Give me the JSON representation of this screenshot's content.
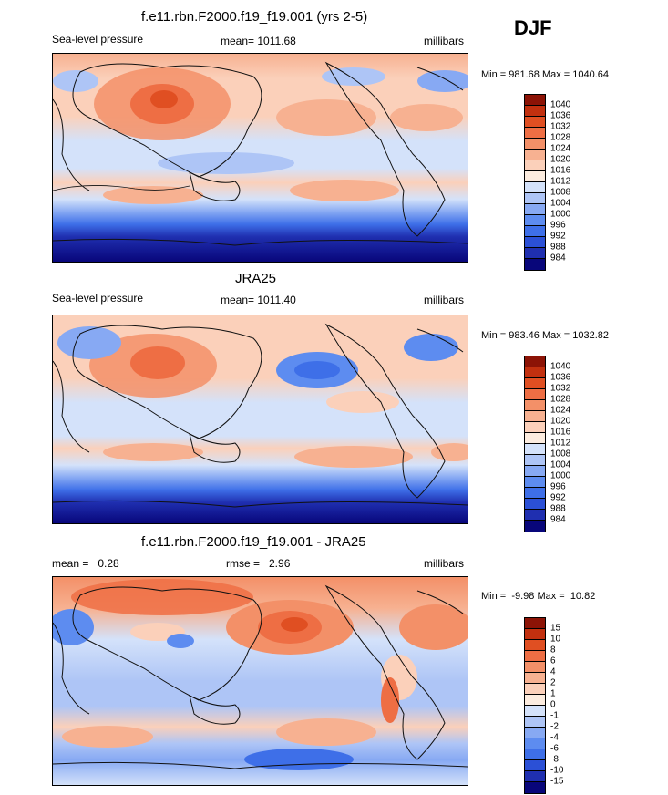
{
  "season": "DJF",
  "colors": {
    "coast": "#111111",
    "abs_scale": [
      "#08067a",
      "#1f2fb0",
      "#2b50d6",
      "#3e6fe8",
      "#5d8cf0",
      "#87a9f3",
      "#aec5f6",
      "#d4e2fa",
      "#fcecdf",
      "#fbd0ba",
      "#f7b191",
      "#f39068",
      "#ee6e44",
      "#e04f22",
      "#c2300f",
      "#8c1306"
    ],
    "diff_scale": [
      "#08067a",
      "#1f2fb0",
      "#2b50d6",
      "#3e6fe8",
      "#5d8cf0",
      "#87a9f3",
      "#aec5f6",
      "#d4e2fa",
      "#fcecdf",
      "#fbd0ba",
      "#f7b191",
      "#f39068",
      "#ee6e44",
      "#e04f22",
      "#c2300f",
      "#8c1306"
    ]
  },
  "panels": [
    {
      "title": "f.e11.rbn.F2000.f19_f19.001 (yrs 2-5)",
      "left_label": "Sea-level pressure",
      "center_label": "mean= 1011.68",
      "right_label": "millibars",
      "minmax": "Min = 981.68 Max = 1040.64",
      "legend_labels": [
        "1040",
        "1036",
        "1032",
        "1028",
        "1024",
        "1020",
        "1016",
        "1012",
        "1008",
        "1004",
        "1000",
        "996",
        "992",
        "988",
        "984"
      ]
    },
    {
      "title": "JRA25",
      "left_label": "Sea-level pressure",
      "center_label": "mean= 1011.40",
      "right_label": "millibars",
      "minmax": "Min = 983.46 Max = 1032.82",
      "legend_labels": [
        "1040",
        "1036",
        "1032",
        "1028",
        "1024",
        "1020",
        "1016",
        "1012",
        "1008",
        "1004",
        "1000",
        "996",
        "992",
        "988",
        "984"
      ]
    },
    {
      "title": "f.e11.rbn.F2000.f19_f19.001 - JRA25",
      "left_label": "mean =   0.28",
      "center_label": "rmse =   2.96",
      "right_label": "millibars",
      "minmax": "Min =  -9.98 Max =  10.82",
      "legend_labels": [
        "15",
        "10",
        "8",
        "6",
        "4",
        "2",
        "1",
        "0",
        "-1",
        "-2",
        "-4",
        "-6",
        "-8",
        "-10",
        "-15"
      ]
    }
  ]
}
